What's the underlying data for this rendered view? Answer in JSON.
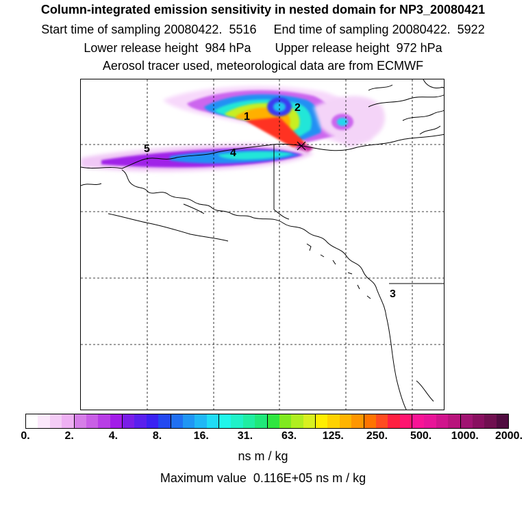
{
  "header": {
    "title": "Column-integrated emission sensitivity in nested domain for NP3_20080421",
    "sampling_line": "Start time of sampling 20080422.  5516     End time of sampling 20080422.  5922",
    "release_line": "Lower release height  984 hPa       Upper release height  972 hPa",
    "source_line": "Aerosol tracer used, meteorological data are from ECMWF"
  },
  "map": {
    "labels": [
      "1",
      "2",
      "4",
      "5",
      "3"
    ]
  },
  "colorbar": {
    "tick_labels": [
      "0.",
      "2.",
      "4.",
      "8.",
      "16.",
      "31.",
      "63.",
      "125.",
      "250.",
      "500.",
      "1000.",
      "2000."
    ],
    "colors": [
      "#ffffff",
      "#fbe8fb",
      "#f4ccf6",
      "#eeb0f3",
      "#d67ee8",
      "#c95fe6",
      "#b83ee6",
      "#a21ce8",
      "#7a1ee8",
      "#5a20ee",
      "#3a22f2",
      "#2348f0",
      "#2070f2",
      "#2096f4",
      "#20b8f6",
      "#20dcf6",
      "#20f6ea",
      "#20f2c8",
      "#20eea2",
      "#20e87a",
      "#30e640",
      "#80ea20",
      "#b0ee20",
      "#d8f020",
      "#ffee00",
      "#ffd200",
      "#ffb400",
      "#ff9600",
      "#ff7400",
      "#ff4c20",
      "#ff2040",
      "#ff1470",
      "#f81496",
      "#e81498",
      "#d0148c",
      "#b8147c",
      "#a01472",
      "#881060",
      "#701050",
      "#500c40"
    ],
    "units": "ns m / kg",
    "max_value_line": "Maximum value  0.116E+05 ns m / kg"
  }
}
